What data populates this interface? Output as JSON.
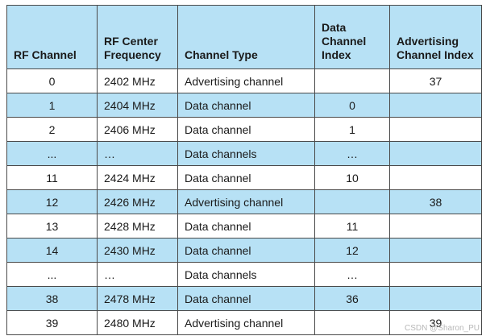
{
  "table": {
    "headers": [
      "RF Channel",
      "RF Center Frequency",
      "Channel Type",
      "Data Channel Index",
      "Advertising Channel Index"
    ],
    "rows": [
      [
        "0",
        "2402 MHz",
        "Advertising channel",
        "",
        "37"
      ],
      [
        "1",
        "2404 MHz",
        "Data channel",
        "0",
        ""
      ],
      [
        "2",
        "2406 MHz",
        "Data channel",
        "1",
        ""
      ],
      [
        "...",
        "…",
        "Data channels",
        "…",
        ""
      ],
      [
        "11",
        "2424 MHz",
        "Data channel",
        "10",
        ""
      ],
      [
        "12",
        "2426 MHz",
        "Advertising channel",
        "",
        "38"
      ],
      [
        "13",
        "2428 MHz",
        "Data channel",
        "11",
        ""
      ],
      [
        "14",
        "2430 MHz",
        "Data channel",
        "12",
        ""
      ],
      [
        "...",
        "…",
        "Data channels",
        "…",
        ""
      ],
      [
        "38",
        "2478 MHz",
        "Data channel",
        "36",
        ""
      ],
      [
        "39",
        "2480 MHz",
        "Advertising channel",
        "",
        "39"
      ]
    ],
    "row_shading": [
      "plain",
      "shade",
      "plain",
      "shade",
      "plain",
      "shade",
      "plain",
      "shade",
      "plain",
      "shade",
      "plain"
    ]
  },
  "colors": {
    "header_bg": "#b7e1f5",
    "shaded_row_bg": "#b7e1f5",
    "border": "#4a4a4a"
  },
  "watermark": "CSDN @Sharon_PU"
}
